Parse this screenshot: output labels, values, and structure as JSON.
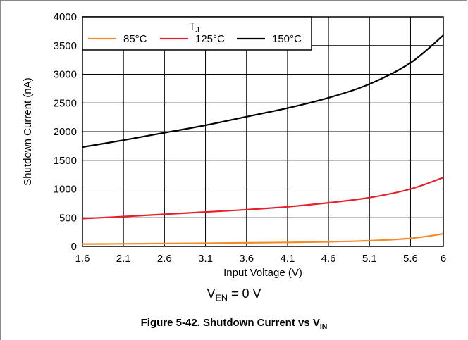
{
  "chart_data": {
    "type": "line",
    "xlabel": "Input Voltage (V)",
    "ylabel": "Shutdown Current (nA)",
    "xlim": [
      1.6,
      6
    ],
    "ylim": [
      0,
      4000
    ],
    "x_ticks": [
      "1.6",
      "2.1",
      "2.6",
      "3.1",
      "3.6",
      "4.1",
      "4.6",
      "5.1",
      "5.6",
      "6"
    ],
    "y_ticks": [
      "0",
      "500",
      "1000",
      "1500",
      "2000",
      "2500",
      "3000",
      "3500",
      "4000"
    ],
    "grid": true,
    "legend": {
      "title": "T",
      "title_sub": "J",
      "placement": "top-left"
    },
    "series": [
      {
        "name": "85°C",
        "color": "#f28c28",
        "x": [
          1.6,
          2.1,
          2.6,
          3.1,
          3.6,
          4.1,
          4.6,
          5.1,
          5.6,
          6.0
        ],
        "y": [
          40,
          45,
          50,
          55,
          62,
          70,
          80,
          100,
          140,
          220
        ]
      },
      {
        "name": "125°C",
        "color": "#e8202a",
        "x": [
          1.6,
          2.1,
          2.6,
          3.1,
          3.6,
          4.1,
          4.6,
          5.1,
          5.6,
          6.0
        ],
        "y": [
          485,
          520,
          560,
          600,
          640,
          690,
          760,
          850,
          1000,
          1200
        ]
      },
      {
        "name": "150°C",
        "color": "#000000",
        "x": [
          1.6,
          2.1,
          2.6,
          3.1,
          3.6,
          4.1,
          4.6,
          5.1,
          5.6,
          6.0
        ],
        "y": [
          1730,
          1850,
          1980,
          2110,
          2260,
          2410,
          2590,
          2830,
          3200,
          3680
        ]
      }
    ]
  },
  "condition": {
    "prefix": "V",
    "sub": "EN",
    "suffix": " = 0 V"
  },
  "caption": {
    "text": "Figure 5-42. Shutdown Current vs V",
    "sub": "IN"
  }
}
